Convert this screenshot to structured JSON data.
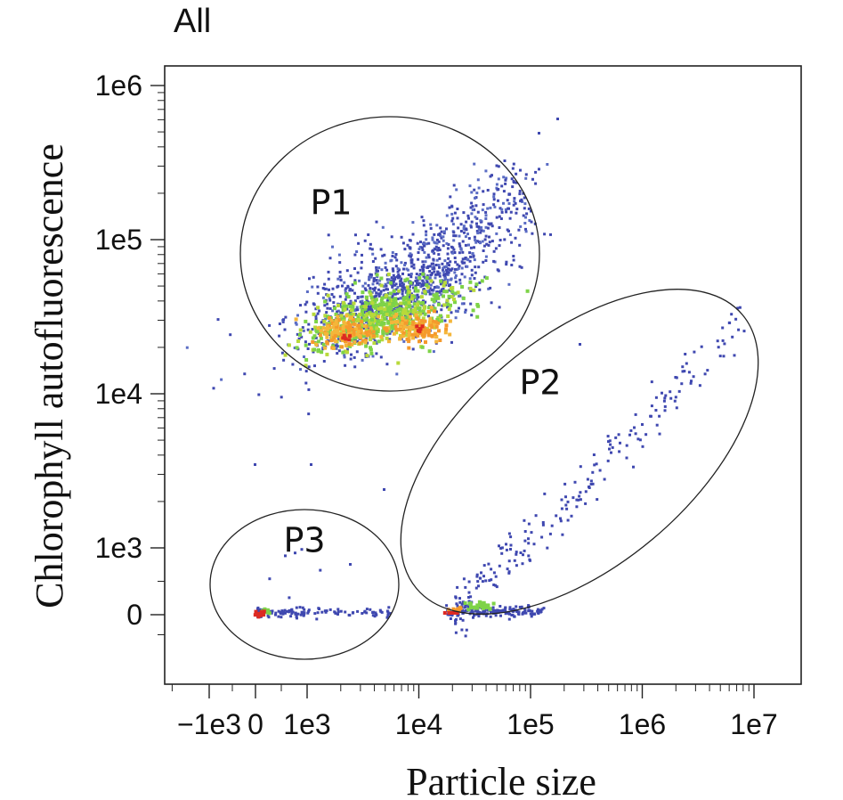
{
  "chart_data": {
    "type": "scatter",
    "title": "All",
    "xlabel": "Particle size",
    "ylabel": "Chlorophyll autofluorescence",
    "x_scale": "biexponential",
    "y_scale": "biexponential",
    "xlim": [
      -2000,
      20000000
    ],
    "ylim": [
      -400,
      1000000
    ],
    "x_ticks": [
      "−1e3",
      "0",
      "1e3",
      "1e4",
      "1e5",
      "1e6",
      "1e7"
    ],
    "y_ticks": [
      "1e6",
      "1e5",
      "1e4",
      "1e3",
      "0"
    ],
    "density_colors": [
      "#3f48b0",
      "#5a6cc4",
      "#7ed348",
      "#b8d93a",
      "#f4b63a",
      "#f59a2c",
      "#dd2a22"
    ],
    "gates": [
      {
        "name": "P1",
        "shape": "ellipse"
      },
      {
        "name": "P2",
        "shape": "ellipse"
      },
      {
        "name": "P3",
        "shape": "ellipse"
      }
    ],
    "populations": [
      {
        "gate": "P1",
        "x_range": [
          300,
          300000
        ],
        "y_range": [
          10000,
          250000
        ],
        "peaks": [
          {
            "x": 2000,
            "y": 25000
          },
          {
            "x": 10000,
            "y": 28000
          }
        ]
      },
      {
        "gate": "P2",
        "x_range": [
          20000,
          15000000
        ],
        "y_range": [
          0,
          40000
        ],
        "peaks": [
          {
            "x": 22000,
            "y": 0
          },
          {
            "x": 50000,
            "y": 100
          }
        ]
      },
      {
        "gate": "P3",
        "x_range": [
          0,
          15000
        ],
        "y_range": [
          0,
          400
        ],
        "peaks": [
          {
            "x": 0,
            "y": 0
          },
          {
            "x": 150,
            "y": 0
          }
        ]
      }
    ]
  }
}
